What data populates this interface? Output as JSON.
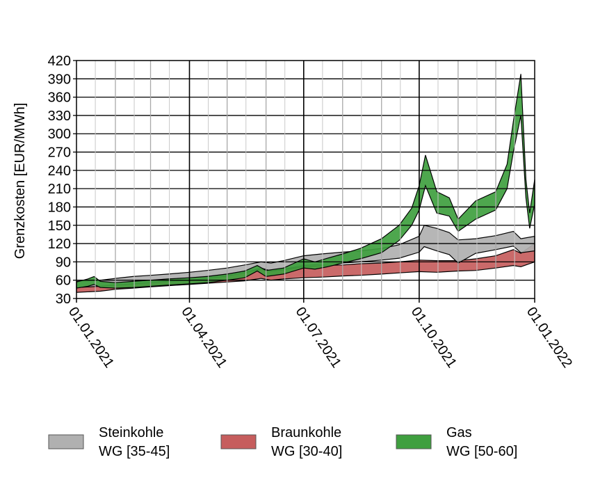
{
  "chart_data": {
    "type": "area",
    "title": "",
    "xlabel": "",
    "ylabel": "Grenzkosten [EUR/MWh]",
    "ylim": [
      30,
      420
    ],
    "y_ticks": [
      30,
      60,
      90,
      120,
      150,
      180,
      210,
      240,
      270,
      300,
      330,
      360,
      390,
      420
    ],
    "x_ticks": [
      "01.01.2021",
      "01.04.2021",
      "01.07.2021",
      "01.10.2021",
      "01.01.2022"
    ],
    "xlim": [
      "2021-01-01",
      "2022-01-01"
    ],
    "grid": true,
    "legend_position": "bottom",
    "colors": {
      "steinkohle_fill": "#b0b0b0",
      "braunkohle_fill": "#c65d5d",
      "gas_fill": "#3f9f3f",
      "band_edge": "#000000"
    },
    "series": [
      {
        "name": "Steinkohle",
        "name_line2": "WG [35-45]",
        "x": [
          "2021-01-01",
          "2021-01-20",
          "2021-02-01",
          "2021-02-15",
          "2021-03-01",
          "2021-03-15",
          "2021-04-01",
          "2021-04-15",
          "2021-05-01",
          "2021-05-15",
          "2021-05-28",
          "2021-06-05",
          "2021-06-15",
          "2021-07-01",
          "2021-07-15",
          "2021-08-01",
          "2021-08-15",
          "2021-09-01",
          "2021-09-15",
          "2021-10-01",
          "2021-10-05",
          "2021-10-15",
          "2021-10-25",
          "2021-11-01",
          "2021-11-15",
          "2021-12-01",
          "2021-12-15",
          "2021-12-21",
          "2022-01-01"
        ],
        "low": [
          48,
          50,
          52,
          54,
          56,
          58,
          60,
          63,
          67,
          72,
          80,
          75,
          78,
          84,
          86,
          88,
          90,
          93,
          96,
          106,
          115,
          108,
          102,
          88,
          104,
          110,
          116,
          105,
          108
        ],
        "high": [
          58,
          60,
          63,
          66,
          68,
          70,
          73,
          76,
          80,
          85,
          90,
          88,
          92,
          100,
          103,
          106,
          108,
          112,
          118,
          132,
          150,
          145,
          138,
          126,
          128,
          133,
          140,
          128,
          132
        ]
      },
      {
        "name": "Braunkohle",
        "name_line2": "WG [30-40]",
        "x": [
          "2021-01-01",
          "2021-01-20",
          "2021-02-01",
          "2021-02-15",
          "2021-03-01",
          "2021-03-15",
          "2021-04-01",
          "2021-04-15",
          "2021-05-01",
          "2021-05-15",
          "2021-05-28",
          "2021-06-05",
          "2021-06-15",
          "2021-07-01",
          "2021-07-15",
          "2021-08-01",
          "2021-08-15",
          "2021-09-01",
          "2021-09-15",
          "2021-10-01",
          "2021-10-15",
          "2021-11-01",
          "2021-11-15",
          "2021-12-01",
          "2021-12-15",
          "2021-12-21",
          "2022-01-01"
        ],
        "low": [
          40,
          42,
          45,
          47,
          49,
          51,
          53,
          55,
          57,
          59,
          63,
          60,
          62,
          64,
          65,
          67,
          68,
          70,
          72,
          74,
          73,
          75,
          76,
          80,
          84,
          82,
          90
        ],
        "high": [
          50,
          52,
          55,
          57,
          60,
          62,
          64,
          67,
          70,
          73,
          78,
          75,
          77,
          82,
          84,
          85,
          87,
          88,
          90,
          93,
          92,
          92,
          95,
          100,
          110,
          104,
          120
        ]
      },
      {
        "name": "Gas",
        "name_line2": "WG [50-60]",
        "x": [
          "2021-01-01",
          "2021-01-10",
          "2021-01-15",
          "2021-01-20",
          "2021-02-01",
          "2021-02-15",
          "2021-03-01",
          "2021-03-15",
          "2021-04-01",
          "2021-04-15",
          "2021-05-01",
          "2021-05-15",
          "2021-05-25",
          "2021-06-01",
          "2021-06-15",
          "2021-07-01",
          "2021-07-10",
          "2021-07-20",
          "2021-08-01",
          "2021-08-15",
          "2021-09-01",
          "2021-09-15",
          "2021-09-25",
          "2021-10-01",
          "2021-10-06",
          "2021-10-15",
          "2021-10-25",
          "2021-11-01",
          "2021-11-15",
          "2021-12-01",
          "2021-12-10",
          "2021-12-15",
          "2021-12-21",
          "2021-12-25",
          "2021-12-28",
          "2022-01-01"
        ],
        "low": [
          47,
          50,
          53,
          48,
          47,
          48,
          50,
          52,
          54,
          56,
          60,
          64,
          75,
          66,
          70,
          80,
          78,
          82,
          88,
          95,
          105,
          125,
          150,
          175,
          215,
          170,
          165,
          140,
          160,
          175,
          210,
          270,
          330,
          195,
          145,
          185
        ],
        "high": [
          57,
          62,
          66,
          58,
          56,
          58,
          60,
          62,
          64,
          66,
          70,
          75,
          84,
          76,
          80,
          95,
          90,
          96,
          103,
          112,
          128,
          150,
          178,
          215,
          265,
          205,
          195,
          160,
          190,
          205,
          250,
          320,
          398,
          225,
          170,
          225
        ]
      }
    ]
  }
}
